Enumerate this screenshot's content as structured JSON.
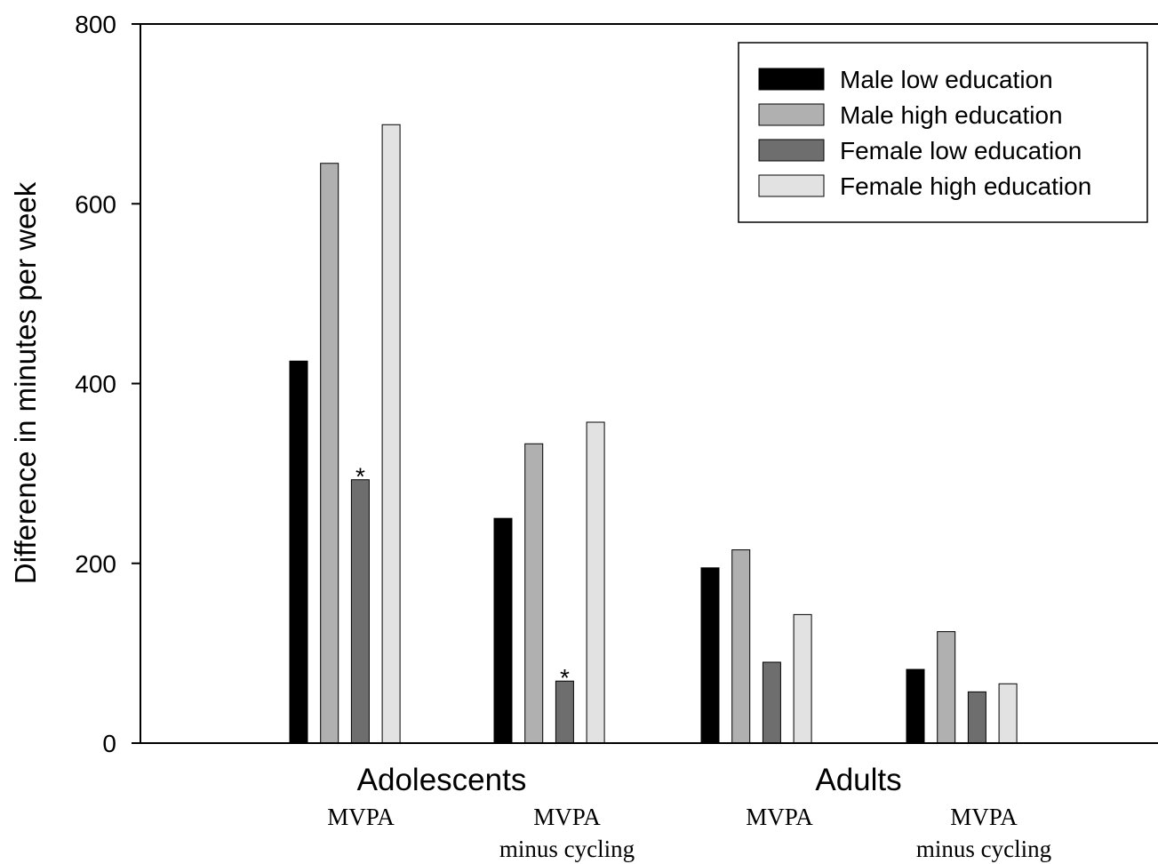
{
  "chart_data": {
    "type": "bar",
    "ylabel": "Difference in minutes per week",
    "ylim": [
      0,
      800
    ],
    "yticks": [
      "0",
      "200",
      "400",
      "600",
      "800"
    ],
    "groups": [
      {
        "label": "Adolescents",
        "subcategories": [
          "MVPA",
          "MVPA minus cycling"
        ]
      },
      {
        "label": "Adults",
        "subcategories": [
          "MVPA",
          "MVPA minus cycling"
        ]
      }
    ],
    "categories": [
      {
        "label_line1": "MVPA",
        "label_line2": ""
      },
      {
        "label_line1": "MVPA",
        "label_line2": "minus cycling"
      },
      {
        "label_line1": "MVPA",
        "label_line2": ""
      },
      {
        "label_line1": "MVPA",
        "label_line2": "minus cycling"
      }
    ],
    "series": [
      {
        "name": "Male low education",
        "color": "#000000",
        "values": [
          425,
          250,
          195,
          82
        ]
      },
      {
        "name": "Male high education",
        "color": "#b0b0b0",
        "values": [
          645,
          333,
          215,
          124
        ]
      },
      {
        "name": "Female low education",
        "color": "#6e6e6e",
        "values": [
          293,
          69,
          90,
          57
        ]
      },
      {
        "name": "Female high education",
        "color": "#e2e2e2",
        "values": [
          688,
          357,
          143,
          66
        ]
      }
    ],
    "annotations": [
      {
        "text": "*",
        "series": 2,
        "category": 0
      },
      {
        "text": "*",
        "series": 2,
        "category": 1
      }
    ],
    "legend_position": "top-right",
    "grid": false
  }
}
